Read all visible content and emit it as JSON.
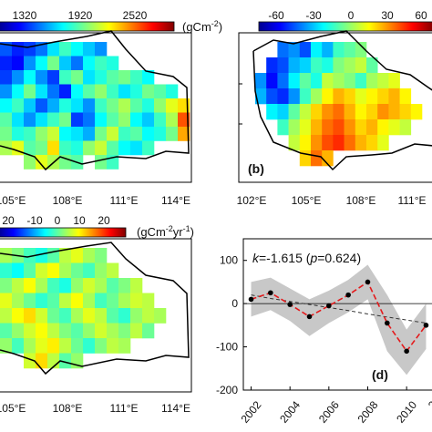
{
  "chart_data": [
    {
      "panel_label": "",
      "type": "heatmap",
      "colorbar": {
        "ticks": [
          "1320",
          "1920",
          "2520"
        ],
        "unit": "(gCm",
        "unit_exp": "-2",
        "unit_close": ")"
      },
      "x_ticks": [
        "105°E",
        "108°E",
        "111°E",
        "114°E"
      ],
      "y_ticks": [],
      "cells": [
        [
          1400,
          1300,
          1350,
          1450,
          1650,
          1800,
          1700,
          1600,
          1500,
          null,
          null,
          null,
          null,
          null,
          null,
          null
        ],
        [
          1300,
          1250,
          1500,
          1700,
          1900,
          1600,
          1450,
          1700,
          1800,
          1750,
          null,
          null,
          null,
          null,
          null,
          null
        ],
        [
          1350,
          1500,
          1700,
          1500,
          1350,
          1800,
          1900,
          1650,
          1750,
          1850,
          1900,
          1800,
          1700,
          null,
          null,
          null
        ],
        [
          1500,
          1700,
          1900,
          1650,
          1450,
          1300,
          1700,
          1850,
          1950,
          1800,
          1650,
          1750,
          1900,
          1850,
          1750,
          null
        ],
        [
          1700,
          1800,
          1600,
          1400,
          1550,
          1750,
          1650,
          1500,
          1800,
          1900,
          2000,
          1850,
          1750,
          1950,
          2100,
          2200
        ],
        [
          1850,
          1650,
          1500,
          1650,
          1800,
          1900,
          1350,
          1450,
          1700,
          1850,
          1950,
          1700,
          1600,
          1800,
          2000,
          2450
        ],
        [
          1900,
          1750,
          1800,
          1950,
          2050,
          1700,
          1650,
          1550,
          1900,
          2050,
          1800,
          1850,
          1700,
          1750,
          1900,
          2300
        ],
        [
          2000,
          2100,
          1850,
          1900,
          2200,
          1800,
          1750,
          1950,
          2050,
          1850,
          1700,
          1650,
          1800,
          null,
          null,
          null
        ],
        [
          null,
          null,
          1950,
          2100,
          2000,
          1900,
          1850,
          null,
          1900,
          1800,
          null,
          null,
          null,
          null,
          null,
          null
        ]
      ]
    },
    {
      "panel_label": "(b)",
      "type": "heatmap",
      "colorbar": {
        "ticks": [
          "-60",
          "-30",
          "0",
          "30",
          "60"
        ],
        "unit": "",
        "unit_exp": "",
        "unit_close": ""
      },
      "x_ticks": [
        "102°E",
        "105°E",
        "108°E",
        "111°E"
      ],
      "y_ticks": [],
      "cells": [
        [
          null,
          null,
          -40,
          -35,
          -45,
          -20,
          -30,
          -10,
          -5,
          0,
          null,
          null,
          null,
          null,
          null,
          null
        ],
        [
          null,
          -50,
          -45,
          -30,
          -25,
          -10,
          -15,
          0,
          5,
          10,
          -5,
          null,
          null,
          null,
          null,
          null
        ],
        [
          -35,
          -55,
          -40,
          -20,
          -5,
          -15,
          10,
          5,
          0,
          -10,
          5,
          10,
          15,
          null,
          null,
          null
        ],
        [
          -30,
          -45,
          -50,
          -35,
          -10,
          5,
          20,
          30,
          25,
          15,
          20,
          25,
          30,
          20,
          null,
          null
        ],
        [
          null,
          -20,
          -25,
          -5,
          10,
          25,
          35,
          40,
          30,
          20,
          25,
          35,
          30,
          25,
          20,
          null
        ],
        [
          null,
          null,
          -10,
          5,
          15,
          30,
          40,
          45,
          35,
          25,
          30,
          20,
          15,
          10,
          null,
          null
        ],
        [
          null,
          null,
          null,
          10,
          20,
          35,
          45,
          50,
          40,
          30,
          25,
          15,
          null,
          null,
          null,
          null
        ],
        [
          null,
          null,
          null,
          null,
          25,
          40,
          30,
          null,
          null,
          null,
          null,
          null,
          null,
          null,
          null,
          null
        ]
      ]
    },
    {
      "panel_label": "",
      "type": "heatmap",
      "colorbar": {
        "ticks": [
          "20",
          "-10",
          "0",
          "10",
          "20"
        ],
        "unit": "(gCm",
        "unit_exp": "-2",
        "unit_mid": "yr",
        "unit_exp2": "-1",
        "unit_close": ")"
      },
      "x_ticks": [
        "105°E",
        "108°E",
        "111°E",
        "114°E"
      ],
      "y_ticks": [],
      "cells": [
        [
          2,
          0,
          -3,
          -5,
          -2,
          3,
          5,
          2,
          0,
          null,
          null,
          null,
          null,
          null,
          null,
          null
        ],
        [
          -4,
          -6,
          -2,
          4,
          6,
          2,
          -1,
          -3,
          1,
          3,
          null,
          null,
          null,
          null,
          null,
          null
        ],
        [
          0,
          3,
          6,
          2,
          -3,
          -5,
          1,
          4,
          2,
          -2,
          0,
          3,
          null,
          null,
          null,
          null
        ],
        [
          5,
          2,
          -1,
          -4,
          -2,
          3,
          6,
          2,
          -3,
          -1,
          2,
          4,
          3,
          null,
          null,
          null
        ],
        [
          3,
          6,
          8,
          4,
          -1,
          -3,
          2,
          5,
          3,
          -2,
          -4,
          1,
          3,
          2,
          null,
          null
        ],
        [
          -2,
          1,
          4,
          6,
          3,
          0,
          -2,
          1,
          4,
          2,
          0,
          3,
          -1,
          null,
          null,
          null
        ],
        [
          1,
          -3,
          2,
          5,
          7,
          3,
          -1,
          -4,
          0,
          3,
          2,
          null,
          null,
          null,
          null,
          null
        ],
        [
          null,
          null,
          4,
          8,
          3,
          -2,
          1,
          null,
          null,
          null,
          null,
          null,
          null,
          null,
          null,
          null
        ]
      ]
    },
    {
      "panel_label": "(d)",
      "type": "line",
      "annotation_k": "k",
      "annotation_rest": "=-1.615 (",
      "annotation_p": "p",
      "annotation_tail": "=0.624)",
      "x": [
        2002,
        2003,
        2004,
        2005,
        2006,
        2007,
        2008,
        2009,
        2010,
        2011
      ],
      "x_tick_labels": [
        "2002",
        "2004",
        "2006",
        "2008",
        "2010",
        "2"
      ],
      "y_tick_labels": [
        "100",
        "0",
        "-100",
        "-200"
      ],
      "ylim": [
        -200,
        150
      ],
      "series": [
        {
          "values": [
            10,
            25,
            -2,
            -30,
            -5,
            20,
            50,
            -45,
            -110,
            -50
          ]
        }
      ],
      "trend": [
        20,
        12,
        5,
        -2,
        -9,
        -16,
        -24,
        -31,
        -38,
        -45
      ],
      "band_upper": [
        50,
        60,
        35,
        10,
        30,
        55,
        90,
        20,
        -60,
        0
      ],
      "band_lower": [
        -30,
        -15,
        -40,
        -75,
        -45,
        -20,
        10,
        -110,
        -165,
        -105
      ]
    }
  ]
}
